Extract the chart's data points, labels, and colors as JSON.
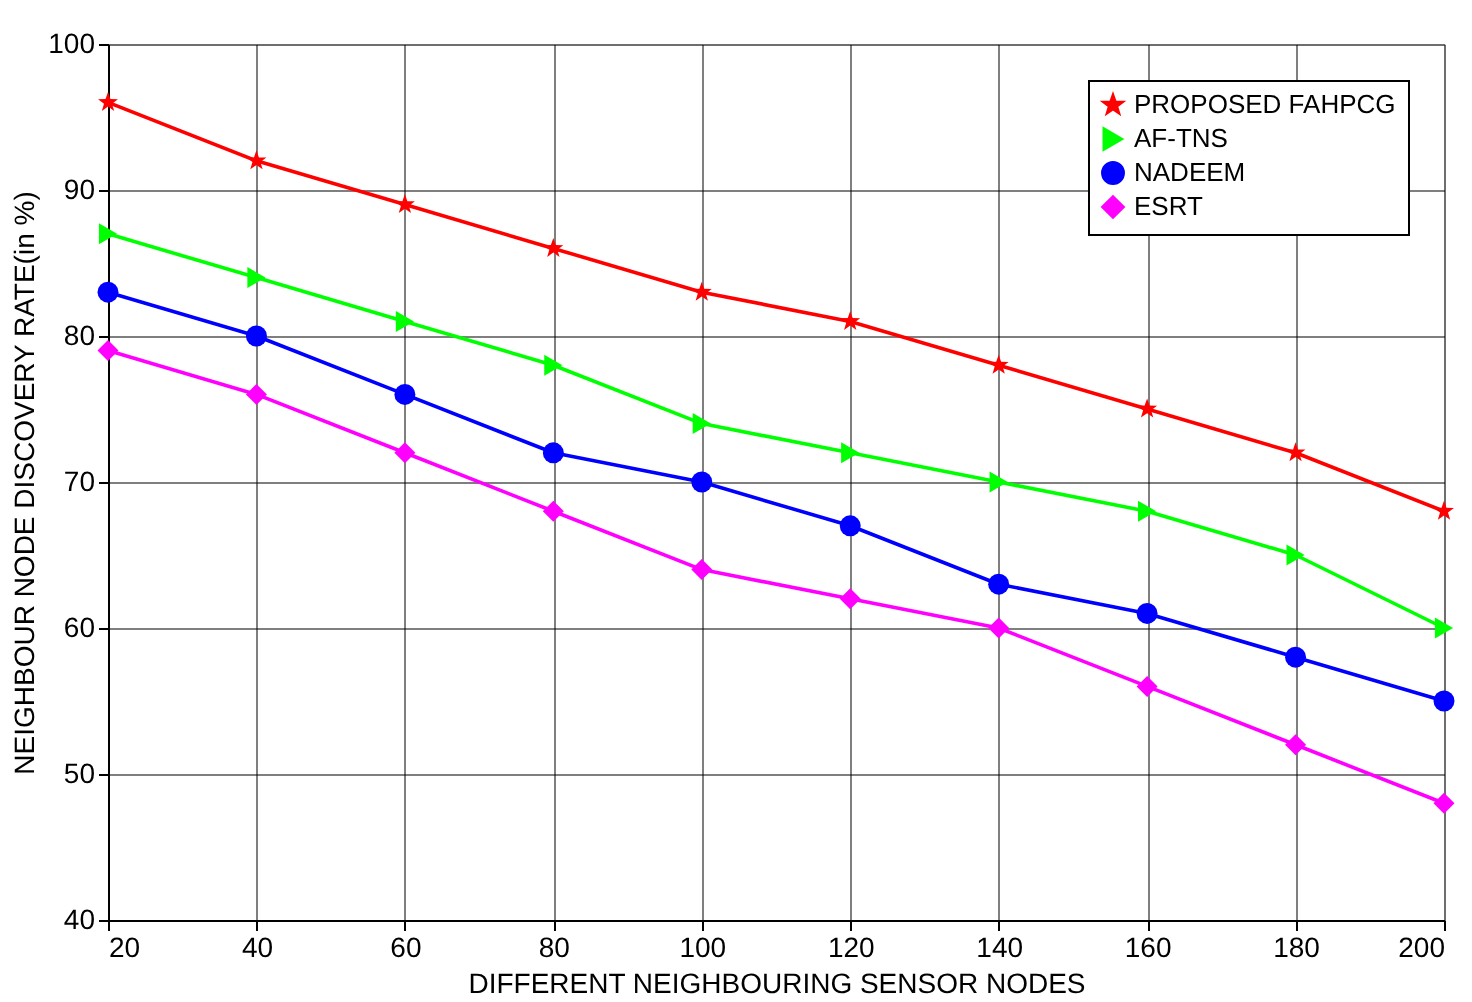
{
  "chart_data": {
    "type": "line",
    "xlabel": "DIFFERENT NEIGHBOURING SENSOR NODES",
    "ylabel": "NEIGHBOUR NODE DISCOVERY RATE(in %)",
    "x": [
      20,
      40,
      60,
      80,
      100,
      120,
      140,
      160,
      180,
      200
    ],
    "series": [
      {
        "name": "PROPOSED FAHPCG",
        "color": "#ff0000",
        "marker": "star",
        "values": [
          96,
          92,
          89,
          86,
          83,
          81,
          78,
          75,
          72,
          68
        ]
      },
      {
        "name": "AF-TNS",
        "color": "#00ff00",
        "marker": "triangle",
        "values": [
          87,
          84,
          81,
          78,
          74,
          72,
          70,
          68,
          65,
          60
        ]
      },
      {
        "name": "NADEEM",
        "color": "#0000ff",
        "marker": "circle",
        "values": [
          83,
          80,
          76,
          72,
          70,
          67,
          63,
          61,
          58,
          55
        ]
      },
      {
        "name": "ESRT",
        "color": "#ff00ff",
        "marker": "diamond",
        "values": [
          79,
          76,
          72,
          68,
          64,
          62,
          60,
          56,
          52,
          48
        ]
      }
    ],
    "xlim": [
      20,
      200
    ],
    "xticks": [
      20,
      40,
      60,
      80,
      100,
      120,
      140,
      160,
      180,
      200
    ],
    "ylim": [
      40,
      100
    ],
    "yticks": [
      40,
      50,
      60,
      70,
      80,
      90,
      100
    ],
    "grid": true,
    "legend": "top right",
    "line_style": "solid"
  }
}
